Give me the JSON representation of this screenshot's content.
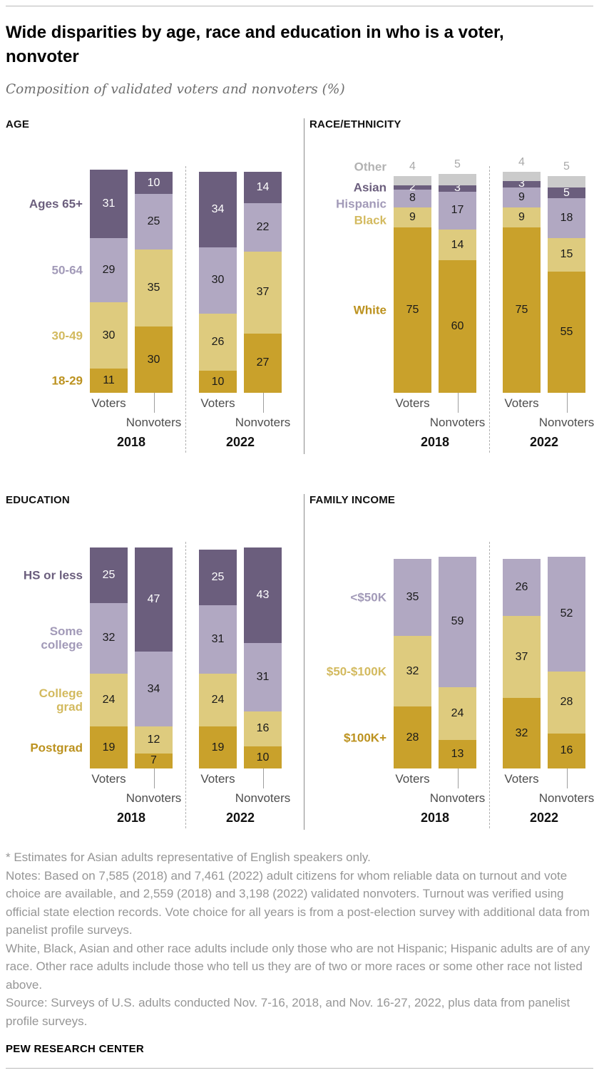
{
  "header": {
    "title": "Wide disparities by age, race and education in who is a voter, nonvoter",
    "subtitle": "Composition of validated voters and nonvoters (%)"
  },
  "palette": {
    "gold_dark": {
      "fill": "#C9A12B",
      "label": "#BC921F"
    },
    "gold_light": {
      "fill": "#DECB7E",
      "label": "#D3BA5F"
    },
    "purple_light": {
      "fill": "#B1A8C2",
      "label": "#A29AB8"
    },
    "purple_dark": {
      "fill": "#6B5E7D",
      "label": "#6B5E7D"
    },
    "gray": {
      "fill": "#CBCBCB",
      "label": "#B2B2B2"
    }
  },
  "value_text_colors": {
    "default": "#1a1a1a",
    "on_dark": "#ffffff",
    "above_bar": "#a9a9a9"
  },
  "chart_data": [
    {
      "type": "bar",
      "stacked": true,
      "unit": "%",
      "ylim": [
        0,
        100
      ],
      "title": "AGE",
      "categories": [
        {
          "name": "18-29",
          "color": "gold_dark"
        },
        {
          "name": "30-49",
          "color": "gold_light"
        },
        {
          "name": "50-64",
          "color": "purple_light"
        },
        {
          "name": "Ages 65+",
          "color": "purple_dark"
        }
      ],
      "groups": [
        {
          "year": "2018",
          "bars": [
            {
              "label": "Voters",
              "values": [
                11,
                30,
                29,
                31
              ]
            },
            {
              "label": "Nonvoters",
              "values": [
                30,
                35,
                25,
                10
              ]
            }
          ]
        },
        {
          "year": "2022",
          "bars": [
            {
              "label": "Voters",
              "values": [
                10,
                26,
                30,
                34
              ]
            },
            {
              "label": "Nonvoters",
              "values": [
                27,
                37,
                22,
                14
              ]
            }
          ]
        }
      ]
    },
    {
      "type": "bar",
      "stacked": true,
      "unit": "%",
      "ylim": [
        0,
        100
      ],
      "title": "RACE/ETHNICITY",
      "categories": [
        {
          "name": "White",
          "color": "gold_dark"
        },
        {
          "name": "Black",
          "color": "gold_light"
        },
        {
          "name": "Hispanic",
          "color": "purple_light"
        },
        {
          "name": "Asian",
          "color": "purple_dark"
        },
        {
          "name": "Other",
          "color": "gray",
          "above_bar": true
        }
      ],
      "groups": [
        {
          "year": "2018",
          "bars": [
            {
              "label": "Voters",
              "values": [
                75,
                9,
                8,
                2,
                4
              ]
            },
            {
              "label": "Nonvoters",
              "values": [
                60,
                14,
                17,
                3,
                5
              ]
            }
          ]
        },
        {
          "year": "2022",
          "bars": [
            {
              "label": "Voters",
              "values": [
                75,
                9,
                9,
                3,
                4
              ]
            },
            {
              "label": "Nonvoters",
              "values": [
                55,
                15,
                18,
                5,
                5
              ]
            }
          ]
        }
      ]
    },
    {
      "type": "bar",
      "stacked": true,
      "unit": "%",
      "ylim": [
        0,
        100
      ],
      "title": "EDUCATION",
      "categories": [
        {
          "name": "Postgrad",
          "color": "gold_dark"
        },
        {
          "name": "College grad",
          "color": "gold_light"
        },
        {
          "name": "Some college",
          "color": "purple_light"
        },
        {
          "name": "HS or less",
          "color": "purple_dark"
        }
      ],
      "groups": [
        {
          "year": "2018",
          "bars": [
            {
              "label": "Voters",
              "values": [
                19,
                24,
                32,
                25
              ]
            },
            {
              "label": "Nonvoters",
              "values": [
                7,
                12,
                34,
                47
              ]
            }
          ]
        },
        {
          "year": "2022",
          "bars": [
            {
              "label": "Voters",
              "values": [
                19,
                24,
                31,
                25
              ]
            },
            {
              "label": "Nonvoters",
              "values": [
                10,
                16,
                31,
                43
              ]
            }
          ]
        }
      ]
    },
    {
      "type": "bar",
      "stacked": true,
      "unit": "%",
      "ylim": [
        0,
        100
      ],
      "title": "FAMILY INCOME",
      "categories": [
        {
          "name": "$100K+",
          "color": "gold_dark"
        },
        {
          "name": "$50-$100K",
          "color": "gold_light"
        },
        {
          "name": "<$50K",
          "color": "purple_light"
        }
      ],
      "groups": [
        {
          "year": "2018",
          "bars": [
            {
              "label": "Voters",
              "values": [
                28,
                32,
                35
              ]
            },
            {
              "label": "Nonvoters",
              "values": [
                13,
                24,
                59
              ]
            }
          ]
        },
        {
          "year": "2022",
          "bars": [
            {
              "label": "Voters",
              "values": [
                32,
                37,
                26
              ]
            },
            {
              "label": "Nonvoters",
              "values": [
                16,
                28,
                52
              ]
            }
          ]
        }
      ]
    }
  ],
  "footer": {
    "asterisk": "* Estimates for Asian adults representative of English speakers only.",
    "notes1": "Notes: Based on 7,585 (2018) and 7,461 (2022) adult citizens for whom reliable data on turnout and vote choice are available, and 2,559 (2018) and 3,198 (2022) validated nonvoters. Turnout was verified using official state election records. Vote choice for all years is from a post-election survey with additional data from panelist profile surveys.",
    "notes2": "White, Black, Asian and other race adults include only those who are not Hispanic; Hispanic adults are of any race. Other race adults include those who tell us they are of two or more races or some other race not listed above.",
    "source": "Source: Surveys of U.S. adults conducted Nov. 7-16, 2018, and Nov. 16-27, 2022, plus data from panelist profile surveys.",
    "brand": "PEW RESEARCH CENTER"
  }
}
